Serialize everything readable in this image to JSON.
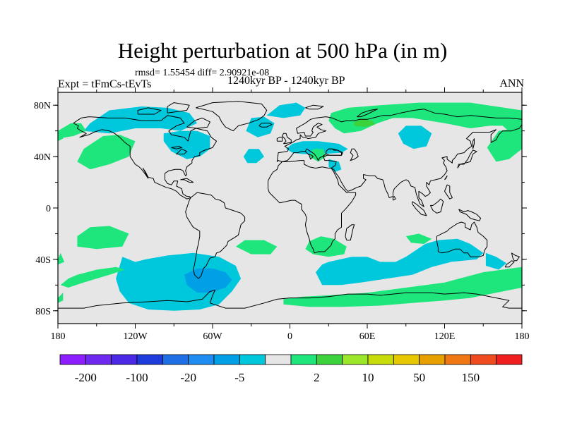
{
  "title": "Height perturbation at 500 hPa (in m)",
  "stats_text": "rmsd= 1.55454 diff= 2.90921e-08",
  "experiment_text": "Expt = tFmCs-tEvTs",
  "period_text": "1240kyr BP - 1240kyr BP",
  "season_text": "ANN",
  "colors": {
    "background_band": "#e6e6e6",
    "positive_fill": "#1ee67d",
    "positive_strong_fill": "#3cd23c",
    "negative_fill": "#00c8dc",
    "negative_strong_fill": "#00a0e6",
    "coastline": "#000000"
  },
  "map": {
    "lon_ticks": [
      "180",
      "120W",
      "60W",
      "0",
      "60E",
      "120E",
      "180"
    ],
    "lat_ticks": [
      "80N",
      "40N",
      "0",
      "40S",
      "80S"
    ]
  },
  "colorbar": {
    "colors": [
      "#8c1eff",
      "#6e28f0",
      "#4b28e6",
      "#1e3cdc",
      "#1e6ee6",
      "#1e8cf0",
      "#00a0e6",
      "#00c8dc",
      "#e6e6e6",
      "#1ee67d",
      "#3cd23c",
      "#9be628",
      "#c8dc0a",
      "#e6c800",
      "#e6a000",
      "#f07814",
      "#f04b1e",
      "#f01e1e"
    ],
    "labels": [
      "-200",
      "-100",
      "-20",
      "-5",
      "2",
      "10",
      "50",
      "150"
    ]
  }
}
